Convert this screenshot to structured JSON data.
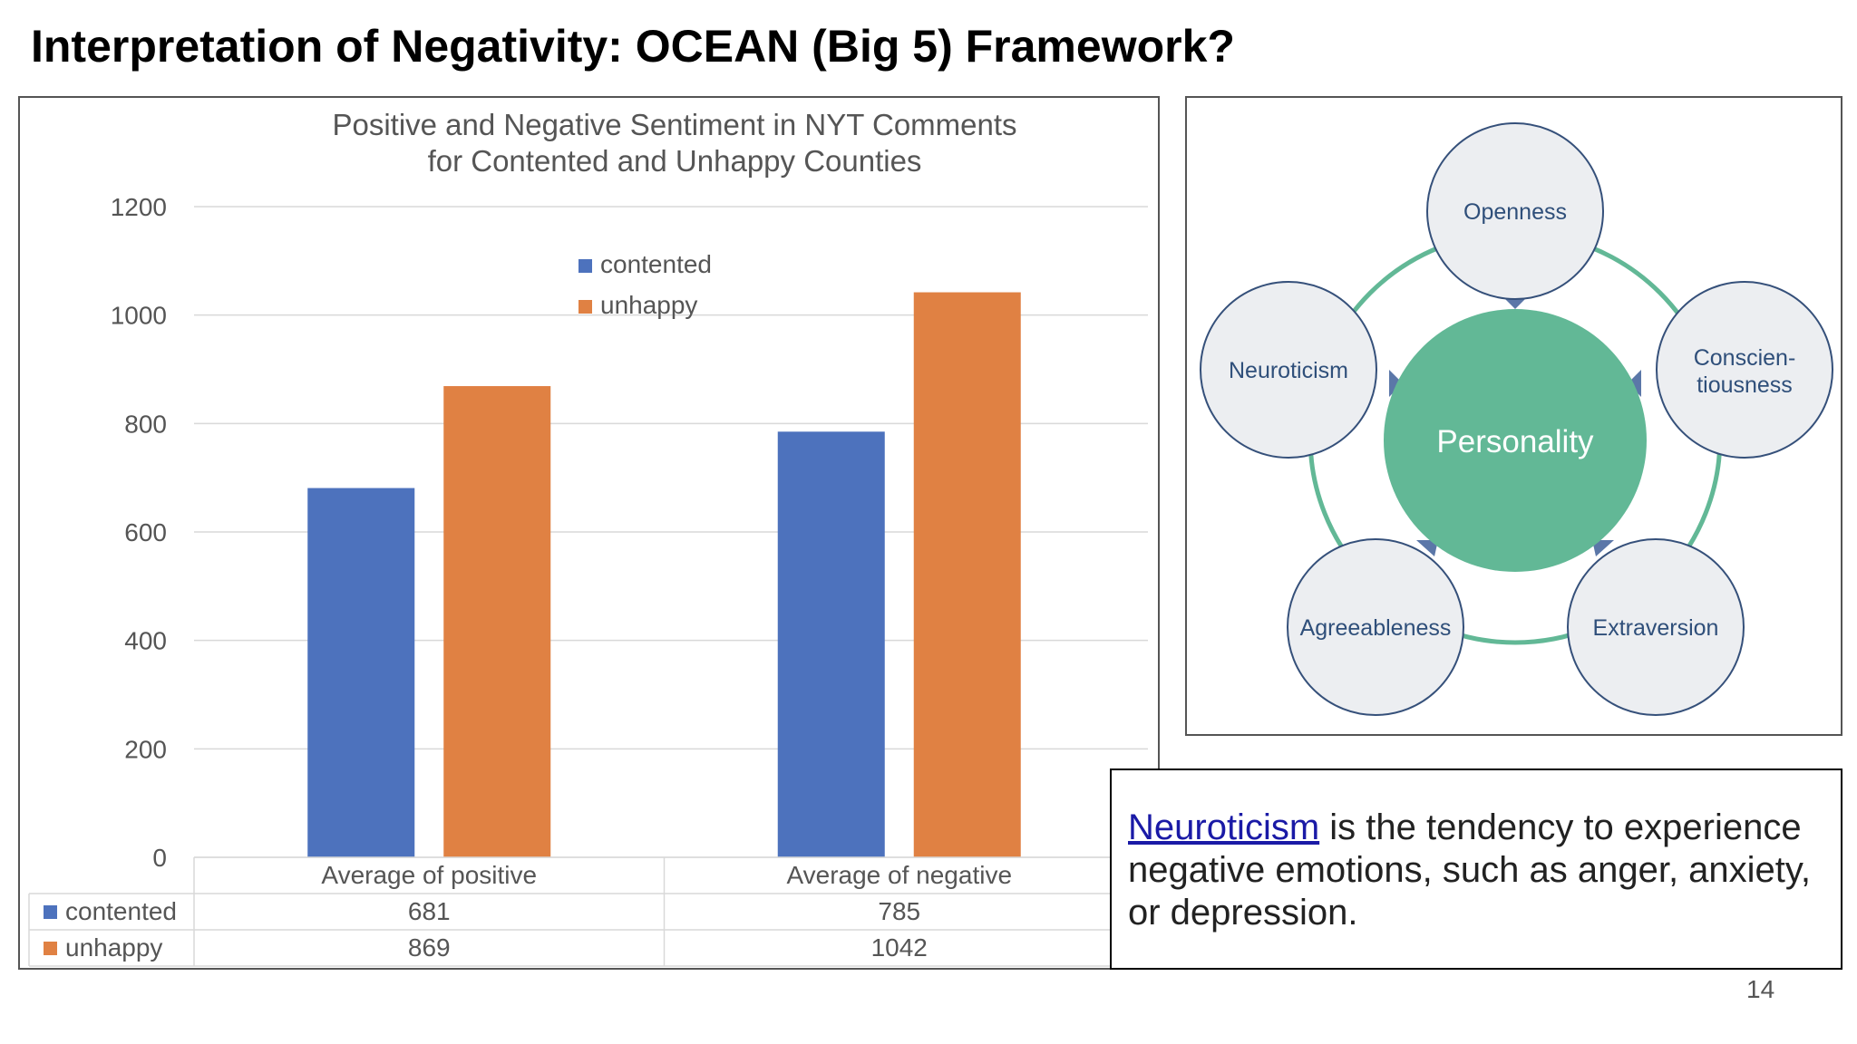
{
  "slide": {
    "title": "Interpretation of Negativity: OCEAN (Big 5) Framework?",
    "page_number": "14"
  },
  "chart_data": {
    "type": "bar",
    "title_lines": [
      "Positive and Negative Sentiment in NYT Comments",
      "for Contented and Unhappy Counties"
    ],
    "categories": [
      "Average of positive",
      "Average of negative"
    ],
    "series": [
      {
        "name": "contented",
        "values": [
          681,
          785
        ],
        "color": "#4d72bd"
      },
      {
        "name": "unhappy",
        "values": [
          869,
          1042
        ],
        "color": "#e08143"
      }
    ],
    "ylim": [
      0,
      1200
    ],
    "yticks": [
      0,
      200,
      400,
      600,
      800,
      1000,
      1200
    ],
    "grid": true,
    "legend_position": "top-center",
    "data_table": true
  },
  "ocean": {
    "center_label": "Personality",
    "traits": [
      "Openness",
      "Conscien-",
      "tiousness",
      "Extraversion",
      "Agreeableness",
      "Neuroticism"
    ],
    "colors": {
      "center": "#62b896",
      "ring": "#62b896",
      "circle_fill": "#eceef1",
      "circle_stroke": "#35507a",
      "pointer": "#5b77a8"
    }
  },
  "definition": {
    "link_text": "Neuroticism",
    "rest_text": " is the tendency to experience negative emotions, such as anger, anxiety, or depression."
  }
}
